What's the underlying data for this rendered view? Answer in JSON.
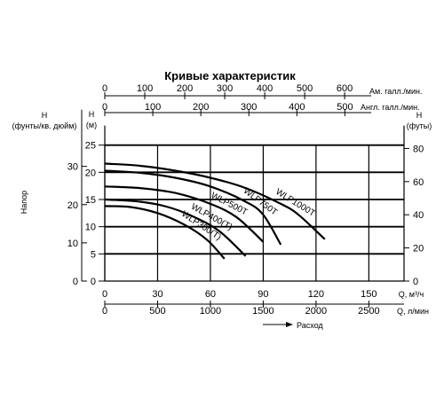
{
  "chart_data": {
    "type": "line",
    "title": "Кривые характеристик",
    "y_axis_label": "Напор",
    "flow_axis_label": "Расход",
    "axes": {
      "q_m3h": {
        "label": "Q, м³/ч",
        "ticks": [
          0,
          30,
          60,
          90,
          120,
          150
        ],
        "range": [
          0,
          170
        ]
      },
      "q_lmin": {
        "label": "Q, л/мин",
        "ticks": [
          0,
          500,
          1000,
          1500,
          2000,
          2500
        ]
      },
      "us_gal": {
        "label": "Ам. галл./мин.",
        "ticks": [
          0,
          100,
          200,
          300,
          400,
          500,
          600
        ]
      },
      "uk_gal": {
        "label": "Англ. галл./мин.",
        "ticks": [
          0,
          100,
          200,
          300,
          400,
          500
        ]
      },
      "h_m": {
        "label": "H (м)",
        "ticks": [
          0,
          5,
          10,
          15,
          20,
          25
        ],
        "range": [
          0,
          25
        ]
      },
      "h_psi": {
        "label": "H (фунты/кв. дюйм)",
        "ticks": [
          0,
          10,
          20,
          30
        ]
      },
      "h_ft": {
        "label": "H (футы)",
        "ticks": [
          0,
          20,
          40,
          60,
          80
        ]
      }
    },
    "series": [
      {
        "name": "WLP1000T",
        "x": [
          0,
          20,
          40,
          60,
          80,
          100,
          110,
          125
        ],
        "y": [
          21.6,
          21.2,
          20.3,
          19.0,
          17.1,
          14.2,
          12.2,
          7.7
        ]
      },
      {
        "name": "WLP750T",
        "x": [
          0,
          20,
          40,
          60,
          80,
          90,
          100
        ],
        "y": [
          20.3,
          19.9,
          19.0,
          17.4,
          14.6,
          12.2,
          6.7
        ]
      },
      {
        "name": "WLP500T",
        "x": [
          0,
          20,
          40,
          60,
          75,
          90
        ],
        "y": [
          17.4,
          17.1,
          16.2,
          14.2,
          11.7,
          7.2
        ]
      },
      {
        "name": "WLP400(T)",
        "x": [
          0,
          20,
          35,
          50,
          65,
          80
        ],
        "y": [
          15.0,
          14.6,
          13.7,
          11.9,
          9.2,
          4.6
        ]
      },
      {
        "name": "WLP300(T)",
        "x": [
          0,
          15,
          30,
          45,
          58,
          68
        ],
        "y": [
          13.8,
          13.6,
          12.5,
          10.4,
          7.6,
          4.1
        ]
      }
    ]
  }
}
